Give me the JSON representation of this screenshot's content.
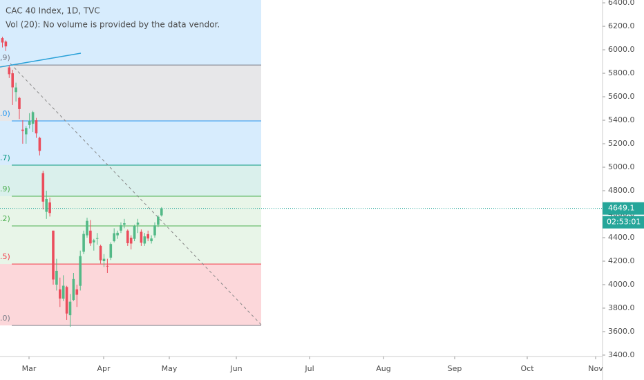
{
  "chart_data": {
    "type": "candlestick",
    "title": "CAC 40 Index, 1D, TVC",
    "subtitle": "Vol (20): No volume is provided by the data vendor.",
    "open": [
      6100,
      6070,
      5850,
      5800,
      5640,
      5590,
      5320,
      5280,
      5360,
      5370,
      5400,
      5250,
      4950,
      4620,
      4700,
      4460,
      4000,
      3960,
      3880,
      3980,
      3740,
      3870,
      3960,
      3990,
      4280,
      4420,
      4460,
      4360,
      4390,
      4330,
      4200,
      4160,
      4230,
      4370,
      4420,
      4460,
      4510,
      4460,
      4400,
      4390,
      4510,
      4450,
      4350,
      4430,
      4370,
      4420,
      4510,
      4590
    ],
    "high": [
      6110,
      6080,
      5870,
      5830,
      5720,
      5600,
      5400,
      5350,
      5460,
      5480,
      5420,
      5260,
      4970,
      4800,
      4740,
      4460,
      4220,
      4060,
      4080,
      3990,
      3920,
      4100,
      4000,
      4290,
      4460,
      4570,
      4550,
      4390,
      4440,
      4340,
      4260,
      4220,
      4360,
      4480,
      4460,
      4530,
      4560,
      4470,
      4420,
      4510,
      4560,
      4470,
      4440,
      4460,
      4420,
      4530,
      4590,
      4660
    ],
    "low": [
      6020,
      5990,
      5760,
      5530,
      5560,
      5410,
      5200,
      5200,
      5330,
      5300,
      5250,
      5100,
      4640,
      4560,
      4580,
      4000,
      3950,
      3810,
      3860,
      3700,
      3640,
      3860,
      3810,
      3950,
      4260,
      4400,
      4330,
      4290,
      4340,
      4180,
      4150,
      4100,
      4210,
      4360,
      4390,
      4440,
      4480,
      4330,
      4300,
      4370,
      4440,
      4330,
      4330,
      4370,
      4350,
      4400,
      4490,
      4580
    ],
    "close": [
      6062,
      6029,
      5792,
      5680,
      5679,
      5495,
      5309,
      5334,
      5393,
      5469,
      5288,
      5139,
      4707,
      4730,
      4610,
      4044,
      4118,
      3881,
      3991,
      3754,
      3855,
      4048,
      3914,
      4243,
      4432,
      4543,
      4351,
      4378,
      4396,
      4207,
      4220,
      4154,
      4346,
      4438,
      4442,
      4506,
      4523,
      4353,
      4350,
      4499,
      4528,
      4357,
      4411,
      4393,
      4393,
      4505,
      4578,
      4649
    ],
    "up_color": "#53b987",
    "down_color": "#eb4d5c",
    "x_labels": [
      "Mar",
      "Apr",
      "May",
      "Jun",
      "Jul",
      "Aug",
      "Sep",
      "Oct",
      "Nov"
    ],
    "ylim": [
      3388,
      6424
    ],
    "yticks": [
      {
        "value": 3400,
        "label": "3400.0"
      },
      {
        "value": 3600,
        "label": "3600.0"
      },
      {
        "value": 3800,
        "label": "3800.0"
      },
      {
        "value": 4000,
        "label": "4000.0"
      },
      {
        "value": 4200,
        "label": "4200.0"
      },
      {
        "value": 4400,
        "label": "4400.0"
      },
      {
        "value": 4600,
        "label": "4600.0"
      },
      {
        "value": 4800,
        "label": "4800.0"
      },
      {
        "value": 5000,
        "label": "5000.0"
      },
      {
        "value": 5200,
        "label": "5200.0"
      },
      {
        "value": 5400,
        "label": "5400.0"
      },
      {
        "value": 5600,
        "label": "5600.0"
      },
      {
        "value": 5800,
        "label": "5800.0"
      },
      {
        "value": 6000,
        "label": "6000.0"
      },
      {
        "value": 6200,
        "label": "6200.0"
      },
      {
        "value": 6400,
        "label": "6400.0"
      }
    ],
    "top_fill": "rgba(33,150,243,0.18)",
    "fib_levels": [
      {
        "label": ",9)",
        "value": 5870,
        "color": "#787b86",
        "fill": "rgba(120,123,134,0.18)"
      },
      {
        "label": ".0)",
        "value": 5394,
        "color": "#2196f3",
        "fill": "rgba(33,150,243,0.18)"
      },
      {
        "label": ".7)",
        "value": 5018,
        "color": "#089981",
        "fill": "rgba(8,153,129,0.15)"
      },
      {
        "label": ".9)",
        "value": 4753,
        "color": "#4caf50",
        "fill": "rgba(76,175,80,0.13)"
      },
      {
        "label": ".2)",
        "value": 4500,
        "color": "#4caf50",
        "fill": "rgba(76,175,80,0.13)"
      },
      {
        "label": ".5)",
        "value": 4176,
        "color": "#f23645",
        "fill": "rgba(242,54,69,0.2)"
      },
      {
        "label": ".0)",
        "value": 3653,
        "color": "#787b86"
      }
    ],
    "last_price": {
      "value": 4649.1,
      "label": "4649.1",
      "color": "#26a69a"
    },
    "countdown": "02:53:01"
  }
}
